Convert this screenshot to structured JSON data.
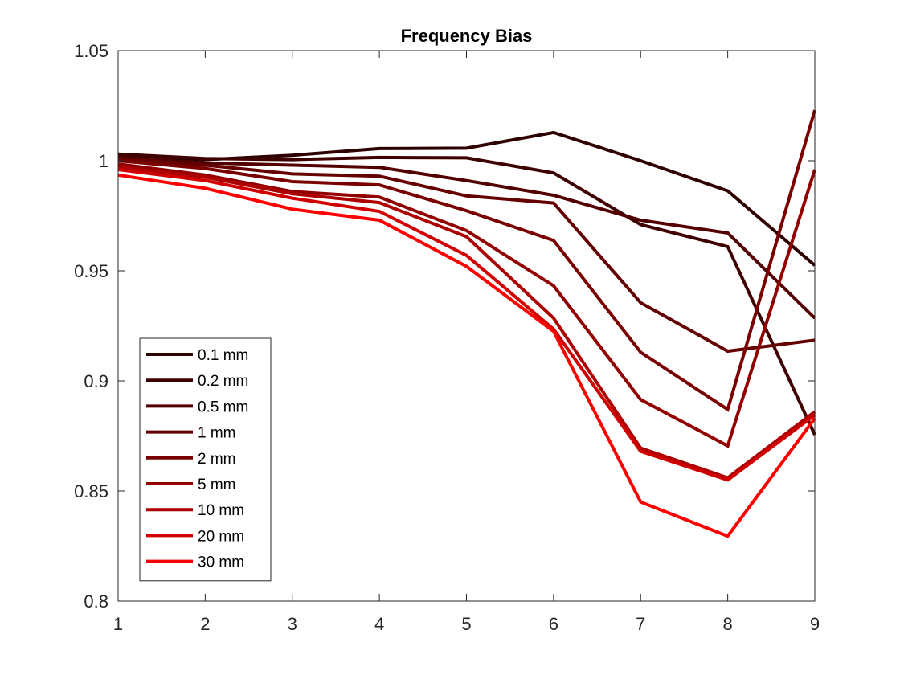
{
  "chart_data": {
    "type": "line",
    "title": "Frequency Bias",
    "xlabel": "",
    "ylabel": "",
    "xlim": [
      1,
      9
    ],
    "ylim": [
      0.8,
      1.05
    ],
    "x": [
      1,
      2,
      3,
      4,
      5,
      6,
      7,
      8,
      9
    ],
    "x_ticks": [
      1,
      2,
      3,
      4,
      5,
      6,
      7,
      8,
      9
    ],
    "x_tick_labels": [
      "1",
      "2",
      "3",
      "4",
      "5",
      "6",
      "7",
      "8",
      "9"
    ],
    "y_ticks": [
      0.8,
      0.85,
      0.9,
      0.95,
      1.0,
      1.05
    ],
    "y_tick_labels": [
      "0.8",
      "0.85",
      "0.9",
      "0.95",
      "1",
      "1.05"
    ],
    "grid": false,
    "legend_position": "bottom-left",
    "series": [
      {
        "name": "0.1 mm",
        "color": "#2e0000",
        "values": [
          1.0025,
          1.0005,
          1.0025,
          1.0055,
          1.0057,
          1.0128,
          1.0,
          0.9863,
          0.9525
        ]
      },
      {
        "name": "0.2 mm",
        "color": "#3f0000",
        "values": [
          1.003,
          1.001,
          1.0005,
          1.0015,
          1.0013,
          0.9945,
          0.971,
          0.961,
          0.8755
        ]
      },
      {
        "name": "0.5 mm",
        "color": "#520000",
        "values": [
          1.0015,
          0.999,
          0.998,
          0.997,
          0.991,
          0.9843,
          0.973,
          0.9672,
          0.9285
        ]
      },
      {
        "name": "1 mm",
        "color": "#650000",
        "values": [
          1.001,
          0.998,
          0.994,
          0.993,
          0.984,
          0.9808,
          0.9355,
          0.9135,
          0.9185
        ]
      },
      {
        "name": "2 mm",
        "color": "#7a0000",
        "values": [
          1.0,
          0.9965,
          0.9905,
          0.989,
          0.9773,
          0.9638,
          0.913,
          0.887,
          1.023
        ]
      },
      {
        "name": "5 mm",
        "color": "#920000",
        "values": [
          0.9985,
          0.9935,
          0.986,
          0.9835,
          0.9683,
          0.9432,
          0.8915,
          0.8705,
          0.996
        ]
      },
      {
        "name": "10 mm",
        "color": "#ad0000",
        "values": [
          0.997,
          0.9925,
          0.985,
          0.981,
          0.9655,
          0.9285,
          0.8695,
          0.856,
          0.886
        ]
      },
      {
        "name": "20 mm",
        "color": "#d00000",
        "values": [
          0.996,
          0.991,
          0.983,
          0.977,
          0.957,
          0.9235,
          0.868,
          0.855,
          0.8845
        ]
      },
      {
        "name": "30 mm",
        "color": "#ff0000",
        "values": [
          0.9935,
          0.9875,
          0.978,
          0.973,
          0.952,
          0.9225,
          0.845,
          0.8295,
          0.883
        ]
      }
    ]
  }
}
